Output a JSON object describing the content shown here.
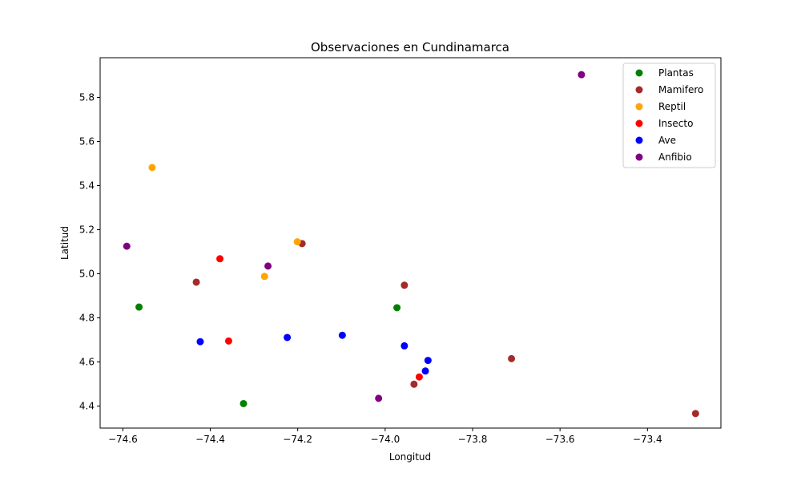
{
  "chart_data": {
    "type": "scatter",
    "title": "Observaciones en Cundinamarca",
    "xlabel": "Longitud",
    "ylabel": "Latitud",
    "xlim": [
      -74.652,
      -73.232
    ],
    "ylim": [
      4.3,
      5.98
    ],
    "xticks": [
      -74.6,
      -74.4,
      -74.2,
      -74.0,
      -73.8,
      -73.6,
      -73.4
    ],
    "xtick_labels": [
      "−74.6",
      "−74.4",
      "−74.2",
      "−74.0",
      "−73.8",
      "−73.6",
      "−73.4"
    ],
    "yticks": [
      4.4,
      4.6,
      4.8,
      5.0,
      5.2,
      5.4,
      5.6,
      5.8
    ],
    "ytick_labels": [
      "4.4",
      "4.6",
      "4.8",
      "5.0",
      "5.2",
      "5.4",
      "5.6",
      "5.8"
    ],
    "grid": false,
    "legend_position": "top-right",
    "series": [
      {
        "name": "Plantas",
        "color": "#008000",
        "points": [
          [
            -74.563,
            4.849
          ],
          [
            -73.973,
            4.846
          ],
          [
            -74.324,
            4.411
          ]
        ]
      },
      {
        "name": "Mamifero",
        "color": "#a52a2a",
        "points": [
          [
            -74.19,
            5.137
          ],
          [
            -74.432,
            4.962
          ],
          [
            -73.956,
            4.948
          ],
          [
            -73.711,
            4.615
          ],
          [
            -73.934,
            4.499
          ],
          [
            -73.29,
            4.366
          ]
        ]
      },
      {
        "name": "Reptil",
        "color": "#ffa500",
        "points": [
          [
            -74.533,
            5.482
          ],
          [
            -74.201,
            5.145
          ],
          [
            -74.276,
            4.988
          ]
        ]
      },
      {
        "name": "Insecto",
        "color": "#ff0000",
        "points": [
          [
            -74.378,
            5.068
          ],
          [
            -74.358,
            4.695
          ],
          [
            -73.922,
            4.532
          ]
        ]
      },
      {
        "name": "Ave",
        "color": "#0000ff",
        "points": [
          [
            -74.423,
            4.692
          ],
          [
            -74.224,
            4.711
          ],
          [
            -74.098,
            4.721
          ],
          [
            -73.956,
            4.673
          ],
          [
            -73.902,
            4.607
          ],
          [
            -73.908,
            4.559
          ]
        ]
      },
      {
        "name": "Anfibio",
        "color": "#800080",
        "points": [
          [
            -73.551,
            5.903
          ],
          [
            -74.591,
            5.125
          ],
          [
            -74.268,
            5.035
          ],
          [
            -74.015,
            4.435
          ]
        ]
      }
    ]
  }
}
